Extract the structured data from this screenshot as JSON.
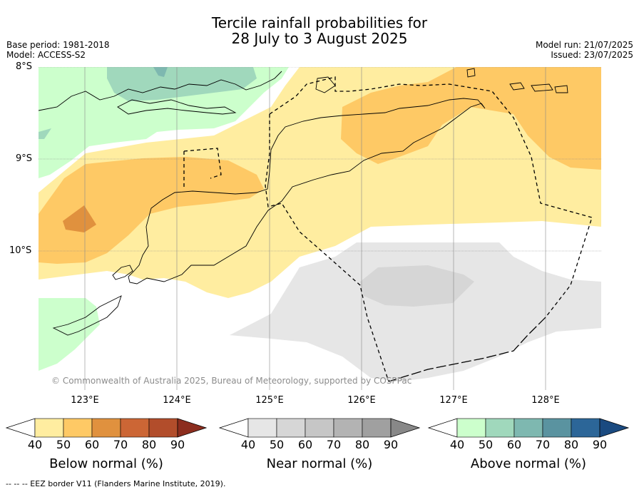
{
  "title_line1": "Tercile rainfall probabilities for",
  "title_line2": "28 July to 3 August 2025",
  "base_period": "Base period: 1981-2018",
  "model": "Model: ACCESS-S2",
  "model_run": "Model run: 21/07/2025",
  "issued": "Issued: 23/07/2025",
  "lat_labels": [
    "8°S",
    "9°S",
    "10°S"
  ],
  "lon_labels": [
    "123°E",
    "124°E",
    "125°E",
    "126°E",
    "127°E",
    "128°E"
  ],
  "copyright": "© Commonwealth of Australia 2025, Bureau of Meteorology, supported by COSPPac",
  "colorbars": [
    {
      "caption": "Below normal (%)",
      "ticks": [
        "40",
        "50",
        "60",
        "70",
        "80",
        "90"
      ],
      "colors": [
        "#ffeda0",
        "#fec965",
        "#e0913e",
        "#cc6635",
        "#b24d2b",
        "#8c2d1e"
      ]
    },
    {
      "caption": "Near normal (%)",
      "ticks": [
        "40",
        "50",
        "60",
        "70",
        "80",
        "90"
      ],
      "colors": [
        "#e6e6e6",
        "#d6d6d6",
        "#c6c6c6",
        "#b3b3b3",
        "#a0a0a0",
        "#888888"
      ]
    },
    {
      "caption": "Above normal (%)",
      "ticks": [
        "40",
        "50",
        "60",
        "70",
        "80",
        "90"
      ],
      "colors": [
        "#ccffcc",
        "#a0d8bc",
        "#7eb8b0",
        "#5a93a0",
        "#2c6698",
        "#1a4a80"
      ]
    }
  ],
  "footnote": "-- -- -- EEZ border V11 (Flanders Marine Institute, 2019)."
}
